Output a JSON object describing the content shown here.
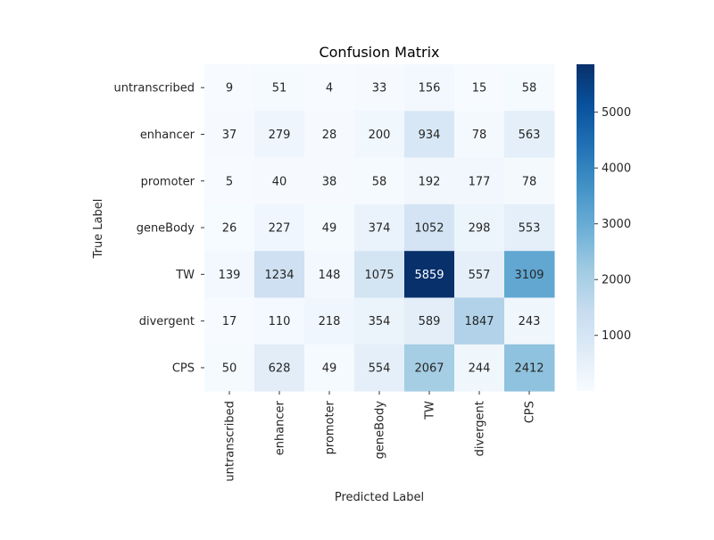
{
  "chart_data": {
    "type": "heatmap",
    "title": "Confusion Matrix",
    "xlabel": "Predicted Label",
    "ylabel": "True Label",
    "row_labels": [
      "untranscribed",
      "enhancer",
      "promoter",
      "geneBody",
      "TW",
      "divergent",
      "CPS"
    ],
    "col_labels": [
      "untranscribed",
      "enhancer",
      "promoter",
      "geneBody",
      "TW",
      "divergent",
      "CPS"
    ],
    "values": [
      [
        9,
        51,
        4,
        33,
        156,
        15,
        58
      ],
      [
        37,
        279,
        28,
        200,
        934,
        78,
        563
      ],
      [
        5,
        40,
        38,
        58,
        192,
        177,
        78
      ],
      [
        26,
        227,
        49,
        374,
        1052,
        298,
        553
      ],
      [
        139,
        1234,
        148,
        1075,
        5859,
        557,
        3109
      ],
      [
        17,
        110,
        218,
        354,
        589,
        1847,
        243
      ],
      [
        50,
        628,
        49,
        554,
        2067,
        244,
        2412
      ]
    ],
    "colormap": "Blues",
    "vmin": 4,
    "vmax": 5859,
    "colorbar_ticks": [
      1000,
      2000,
      3000,
      4000,
      5000
    ]
  }
}
